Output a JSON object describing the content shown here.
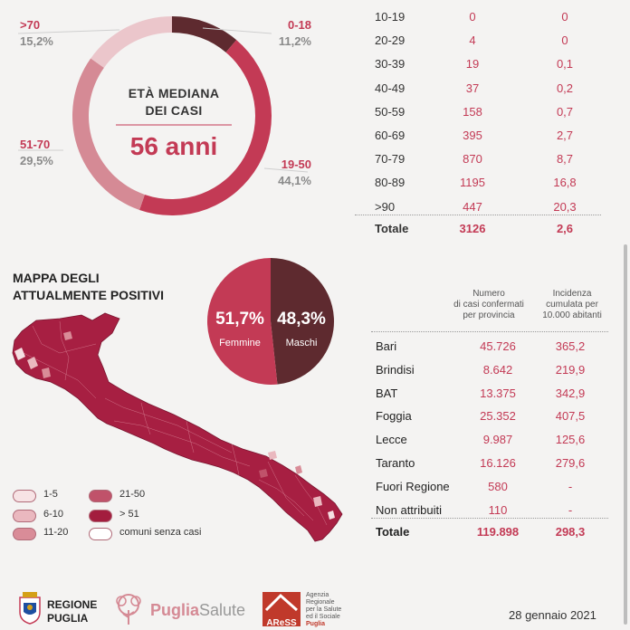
{
  "colors": {
    "accent": "#c33a55",
    "dark": "#5e2a2f",
    "medium": "#d58a95",
    "light": "#ebc6cb",
    "pale": "#f5e1e3",
    "map_fill": "#b8264a"
  },
  "donut": {
    "center_title_line1": "ETÀ MEDIANA",
    "center_title_line2": "DEI CASI",
    "center_value": "56 anni",
    "slices": [
      {
        "label": "0-18",
        "pct": "11,2%",
        "value": 11.2,
        "color": "#5e2a2f"
      },
      {
        "label": "19-50",
        "pct": "44,1%",
        "value": 44.1,
        "color": "#c33a55"
      },
      {
        "label": "51-70",
        "pct": "29,5%",
        "value": 29.5,
        "color": "#d58a95"
      },
      {
        "label": ">70",
        "pct": "15,2%",
        "value": 15.2,
        "color": "#ebc6cb"
      }
    ]
  },
  "age_table": {
    "rows": [
      {
        "age": "10-19",
        "cases": "0",
        "inc": "0"
      },
      {
        "age": "20-29",
        "cases": "4",
        "inc": "0"
      },
      {
        "age": "30-39",
        "cases": "19",
        "inc": "0,1"
      },
      {
        "age": "40-49",
        "cases": "37",
        "inc": "0,2"
      },
      {
        "age": "50-59",
        "cases": "158",
        "inc": "0,7"
      },
      {
        "age": "60-69",
        "cases": "395",
        "inc": "2,7"
      },
      {
        "age": "70-79",
        "cases": "870",
        "inc": "8,7"
      },
      {
        "age": "80-89",
        "cases": "1195",
        "inc": "16,8"
      },
      {
        "age": ">90",
        "cases": "447",
        "inc": "20,3"
      }
    ],
    "total": {
      "label": "Totale",
      "cases": "3126",
      "inc": "2,6"
    }
  },
  "map": {
    "title_line1": "MAPPA DEGLI",
    "title_line2": "ATTUALMENTE POSITIVI",
    "legend": [
      {
        "label": "1-5",
        "color": "#f7e3e5"
      },
      {
        "label": "6-10",
        "color": "#eab8bf"
      },
      {
        "label": "11-20",
        "color": "#d98c98"
      },
      {
        "label": "21-50",
        "color": "#c0526a"
      },
      {
        "label": "> 51",
        "color": "#a31d3e"
      },
      {
        "label": "comuni senza casi",
        "color": "#ffffff"
      }
    ]
  },
  "gender": {
    "female": {
      "pct": "51,7%",
      "value": 51.7,
      "label": "Femmine",
      "color": "#c33a55"
    },
    "male": {
      "pct": "48,3%",
      "value": 48.3,
      "label": "Maschi",
      "color": "#5e2a2f"
    }
  },
  "province_table": {
    "header_cases": [
      "Numero",
      "di casi confermati",
      "per provincia"
    ],
    "header_inc": [
      "Incidenza",
      "cumulata per",
      "10.000 abitanti"
    ],
    "rows": [
      {
        "name": "Bari",
        "cases": "45.726",
        "inc": "365,2"
      },
      {
        "name": "Brindisi",
        "cases": "8.642",
        "inc": "219,9"
      },
      {
        "name": "BAT",
        "cases": "13.375",
        "inc": "342,9"
      },
      {
        "name": "Foggia",
        "cases": "25.352",
        "inc": "407,5"
      },
      {
        "name": "Lecce",
        "cases": "9.987",
        "inc": "125,6"
      },
      {
        "name": "Taranto",
        "cases": "16.126",
        "inc": "279,6"
      },
      {
        "name": "Fuori Regione",
        "cases": "580",
        "inc": "-"
      },
      {
        "name": "Non attribuiti",
        "cases": "110",
        "inc": "-"
      }
    ],
    "total": {
      "label": "Totale",
      "cases": "119.898",
      "inc": "298,3"
    }
  },
  "footer": {
    "regione_line1": "REGIONE",
    "regione_line2": "PUGLIA",
    "puglia_a": "Puglia",
    "puglia_b": "Salute",
    "aress_logo": "AReSS",
    "aress_line1": "Agenzia",
    "aress_line2": "Regionale",
    "aress_line3": "per la Salute",
    "aress_line4": "ed il Sociale",
    "aress_line5": "Puglia",
    "date": "28 gennaio 2021"
  },
  "chart_data": [
    {
      "type": "pie",
      "title": "ETÀ MEDIANA DEI CASI",
      "categories": [
        "0-18",
        "19-50",
        "51-70",
        ">70"
      ],
      "values": [
        11.2,
        44.1,
        29.5,
        15.2
      ]
    },
    {
      "type": "table",
      "columns": [
        "",
        "",
        ""
      ],
      "rows": [
        [
          "10-19",
          0,
          0
        ],
        [
          "20-29",
          4,
          0
        ],
        [
          "30-39",
          19,
          0.1
        ],
        [
          "40-49",
          37,
          0.2
        ],
        [
          "50-59",
          158,
          0.7
        ],
        [
          "60-69",
          395,
          2.7
        ],
        [
          "70-79",
          870,
          8.7
        ],
        [
          "80-89",
          1195,
          16.8
        ],
        [
          ">90",
          447,
          20.3
        ],
        [
          "Totale",
          3126,
          2.6
        ]
      ]
    },
    {
      "type": "pie",
      "categories": [
        "Femmine",
        "Maschi"
      ],
      "values": [
        51.7,
        48.3
      ]
    },
    {
      "type": "table",
      "columns": [
        "",
        "Numero di casi confermati per provincia",
        "Incidenza cumulata per 10.000 abitanti"
      ],
      "rows": [
        [
          "Bari",
          45726,
          365.2
        ],
        [
          "Brindisi",
          8642,
          219.9
        ],
        [
          "BAT",
          13375,
          342.9
        ],
        [
          "Foggia",
          25352,
          407.5
        ],
        [
          "Lecce",
          9987,
          125.6
        ],
        [
          "Taranto",
          16126,
          279.6
        ],
        [
          "Fuori Regione",
          580,
          null
        ],
        [
          "Non attribuiti",
          110,
          null
        ],
        [
          "Totale",
          119898,
          298.3
        ]
      ]
    }
  ]
}
